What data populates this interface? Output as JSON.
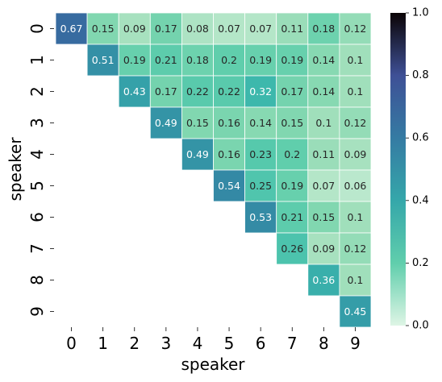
{
  "chart_data": {
    "type": "heatmap",
    "title": "",
    "xlabel": "speaker",
    "ylabel": "speaker",
    "x_categories": [
      "0",
      "1",
      "2",
      "3",
      "4",
      "5",
      "6",
      "7",
      "8",
      "9"
    ],
    "y_categories": [
      "0",
      "1",
      "2",
      "3",
      "4",
      "5",
      "6",
      "7",
      "8",
      "9"
    ],
    "mask": "lower-triangle",
    "values": [
      [
        0.67,
        0.15,
        0.09,
        0.17,
        0.08,
        0.07,
        0.07,
        0.11,
        0.18,
        0.12
      ],
      [
        null,
        0.51,
        0.19,
        0.21,
        0.18,
        0.2,
        0.19,
        0.19,
        0.14,
        0.1
      ],
      [
        null,
        null,
        0.43,
        0.17,
        0.22,
        0.22,
        0.32,
        0.17,
        0.14,
        0.1
      ],
      [
        null,
        null,
        null,
        0.49,
        0.15,
        0.16,
        0.14,
        0.15,
        0.1,
        0.12
      ],
      [
        null,
        null,
        null,
        null,
        0.49,
        0.16,
        0.23,
        0.2,
        0.11,
        0.09
      ],
      [
        null,
        null,
        null,
        null,
        null,
        0.54,
        0.25,
        0.19,
        0.07,
        0.06
      ],
      [
        null,
        null,
        null,
        null,
        null,
        null,
        0.53,
        0.21,
        0.15,
        0.1
      ],
      [
        null,
        null,
        null,
        null,
        null,
        null,
        null,
        0.26,
        0.09,
        0.12
      ],
      [
        null,
        null,
        null,
        null,
        null,
        null,
        null,
        null,
        0.36,
        0.1
      ],
      [
        null,
        null,
        null,
        null,
        null,
        null,
        null,
        null,
        null,
        0.45
      ]
    ],
    "colorbar": {
      "range": [
        0.0,
        1.0
      ],
      "ticks": [
        "0.0",
        "0.2",
        "0.4",
        "0.6",
        "0.8",
        "1.0"
      ],
      "colormap": "mako_r"
    },
    "grid": false
  }
}
